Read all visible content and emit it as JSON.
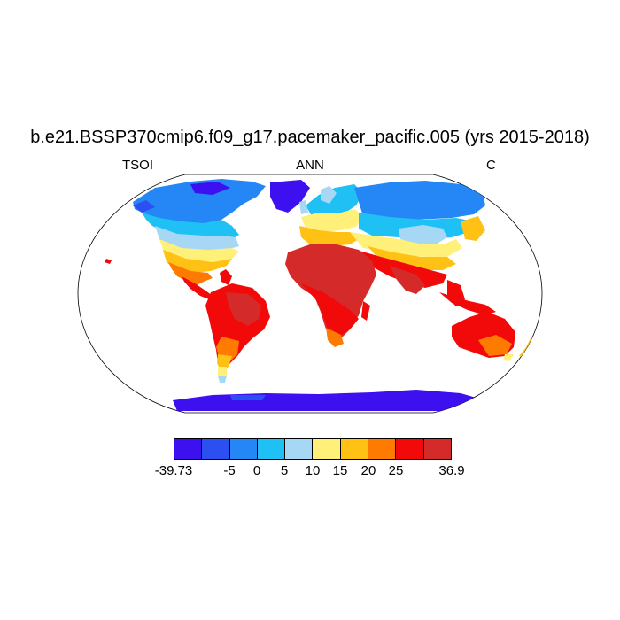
{
  "title": "b.e21.BSSP370cmip6.f09_g17.pacemaker_pacific.005 (yrs 2015-2018)",
  "left_label": "TSOI",
  "center_label": "ANN",
  "right_label": "C",
  "colorbar": {
    "colors": [
      "#3d10f0",
      "#2b4ff0",
      "#2487f5",
      "#1fc1f5",
      "#a6d8f5",
      "#fff07a",
      "#ffc214",
      "#ff7a00",
      "#f20a0a",
      "#d42a2a"
    ],
    "tick_labels": [
      "-39.73",
      "-5",
      "0",
      "5",
      "10",
      "15",
      "20",
      "25",
      "36.9"
    ]
  }
}
